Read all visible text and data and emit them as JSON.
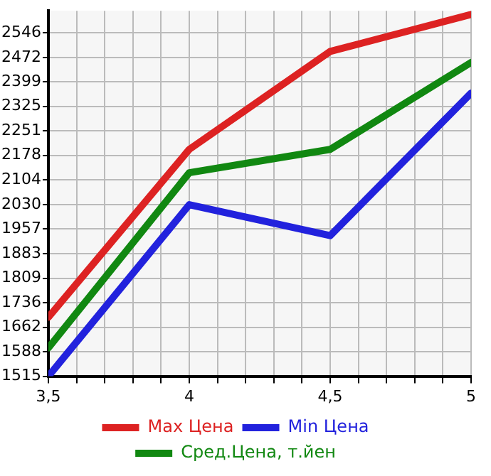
{
  "chart_data": {
    "type": "line",
    "x": [
      3.5,
      4,
      4.5,
      5
    ],
    "series": [
      {
        "name": "Max Цена",
        "color": "#dd2222",
        "values": [
          1692,
          2196,
          2490,
          2601
        ]
      },
      {
        "name": "Min Цена",
        "color": "#2222dd",
        "values": [
          1515,
          2030,
          1937,
          2365
        ]
      },
      {
        "name": "Сред.Цена, т.йен",
        "color": "#118811",
        "values": [
          1600,
          2126,
          2196,
          2457
        ]
      }
    ],
    "xlim": [
      3.5,
      5
    ],
    "xticks": [
      {
        "value": 3.5,
        "label": "3,5"
      },
      {
        "value": 3.6,
        "label": null
      },
      {
        "value": 3.7,
        "label": null
      },
      {
        "value": 3.8,
        "label": null
      },
      {
        "value": 3.9,
        "label": null
      },
      {
        "value": 4,
        "label": "4"
      },
      {
        "value": 4.1,
        "label": null
      },
      {
        "value": 4.2,
        "label": null
      },
      {
        "value": 4.3,
        "label": null
      },
      {
        "value": 4.4,
        "label": null
      },
      {
        "value": 4.5,
        "label": "4,5"
      },
      {
        "value": 4.6,
        "label": null
      },
      {
        "value": 4.7,
        "label": null
      },
      {
        "value": 4.8,
        "label": null
      },
      {
        "value": 4.9,
        "label": null
      },
      {
        "value": 5,
        "label": "5"
      }
    ],
    "ylim": [
      1515,
      2612
    ],
    "yticks": [
      1515,
      1588,
      1662,
      1736,
      1809,
      1883,
      1957,
      2030,
      2104,
      2178,
      2251,
      2325,
      2399,
      2472,
      2546
    ],
    "grid": true,
    "legend": "bottom",
    "marker": "none",
    "line_style": "solid"
  }
}
